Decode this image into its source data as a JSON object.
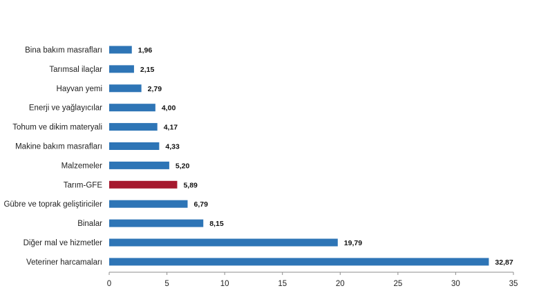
{
  "chart_data": {
    "type": "bar",
    "orientation": "horizontal",
    "title": "",
    "xlabel": "",
    "ylabel": "",
    "categories": [
      "Bina bakım masrafları",
      "Tarımsal ilaçlar",
      "Hayvan yemi",
      "Enerji  ve yağlayıcılar",
      "Tohum ve dikim materyali",
      "Makine bakım masrafları",
      "Malzemeler",
      "Tarım-GFE",
      "Gübre ve toprak geliştiriciler",
      "Binalar",
      "Diğer mal ve hizmetler",
      "Veteriner harcamaları"
    ],
    "values": [
      1.96,
      2.15,
      2.79,
      4.0,
      4.17,
      4.33,
      5.2,
      5.89,
      6.79,
      8.15,
      19.79,
      32.87
    ],
    "value_labels": [
      "1,96",
      "2,15",
      "2,79",
      "4,00",
      "4,17",
      "4,33",
      "5,20",
      "5,89",
      "6,79",
      "8,15",
      "19,79",
      "32,87"
    ],
    "highlight_category": "Tarım-GFE",
    "xlim": [
      0,
      35
    ],
    "x_ticks": [
      0,
      5,
      10,
      15,
      20,
      25,
      30,
      35
    ],
    "x_tick_labels": [
      "0",
      "5",
      "10",
      "15",
      "20",
      "25",
      "30",
      "35"
    ],
    "grid": false,
    "legend": "none",
    "colors": {
      "bar": "#2E75B6",
      "highlight": "#A6192E",
      "axis": "#8c8c8c"
    }
  }
}
